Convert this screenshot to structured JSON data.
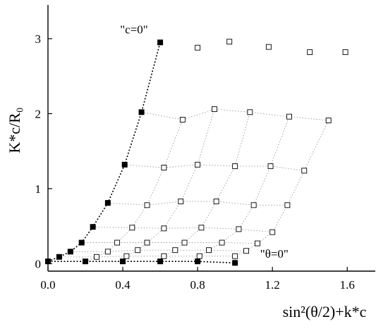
{
  "chart_data": {
    "type": "scatter",
    "xlabel": "sin²(θ/2)+k*c",
    "ylabel": "K*c/R₀",
    "xlim": [
      0,
      1.75
    ],
    "ylim": [
      -0.1,
      3.45
    ],
    "xticks": [
      0.0,
      0.4,
      0.8,
      1.2,
      1.6
    ],
    "xtick_labels": [
      "0.0",
      "0.4",
      "0.8",
      "1.2",
      "1.6"
    ],
    "yticks": [
      0,
      1,
      2,
      3
    ],
    "ytick_labels": [
      "0",
      "1",
      "2",
      "3"
    ],
    "grid": false,
    "annotations": [
      {
        "text": "\"c=0\"",
        "x": 0.46,
        "y": 3.07
      },
      {
        "text": "\"θ=0\"",
        "x": 1.21,
        "y": 0.08
      }
    ],
    "series": [
      {
        "name": "",
        "marker": "filled-square",
        "line": "black-dotted",
        "x": [
          0.0,
          0.2,
          0.4,
          0.6,
          0.8,
          1.0
        ],
        "y": [
          0.03,
          0.03,
          0.03,
          0.03,
          0.03,
          0.01
        ]
      },
      {
        "name": "",
        "marker": "filled-square",
        "line": "black-dotted",
        "x": [
          0.0,
          0.06,
          0.12,
          0.18,
          0.24,
          0.32,
          0.41,
          0.5,
          0.6
        ],
        "y": [
          0.03,
          0.09,
          0.16,
          0.28,
          0.49,
          0.81,
          1.32,
          2.02,
          2.95
        ]
      },
      {
        "name": "",
        "marker": "open-square",
        "line": "grey-dotted",
        "x": [
          0.26,
          0.42,
          0.62,
          0.81,
          1.0,
          0.32,
          0.48,
          0.68,
          0.86,
          1.06,
          0.37,
          0.53,
          0.73,
          0.93,
          1.12,
          0.45,
          0.62,
          0.82,
          1.02,
          1.2,
          0.53,
          0.71,
          0.9,
          1.1,
          1.28,
          0.62,
          0.8,
          1.0,
          1.19,
          1.37,
          0.72,
          0.89,
          1.08,
          1.29,
          1.5,
          0.8,
          0.97,
          1.18,
          1.4,
          1.59
        ],
        "y": [
          0.09,
          0.1,
          0.1,
          0.1,
          0.1,
          0.16,
          0.18,
          0.18,
          0.18,
          0.17,
          0.28,
          0.28,
          0.28,
          0.28,
          0.27,
          0.48,
          0.47,
          0.48,
          0.46,
          0.42,
          0.78,
          0.83,
          0.83,
          0.78,
          0.78,
          1.28,
          1.32,
          1.3,
          1.3,
          1.24,
          1.92,
          2.06,
          2.02,
          1.96,
          1.91,
          2.88,
          2.96,
          2.89,
          2.82,
          2.82
        ]
      }
    ],
    "grid_shape": {
      "rows": 8,
      "cols": 6
    }
  }
}
